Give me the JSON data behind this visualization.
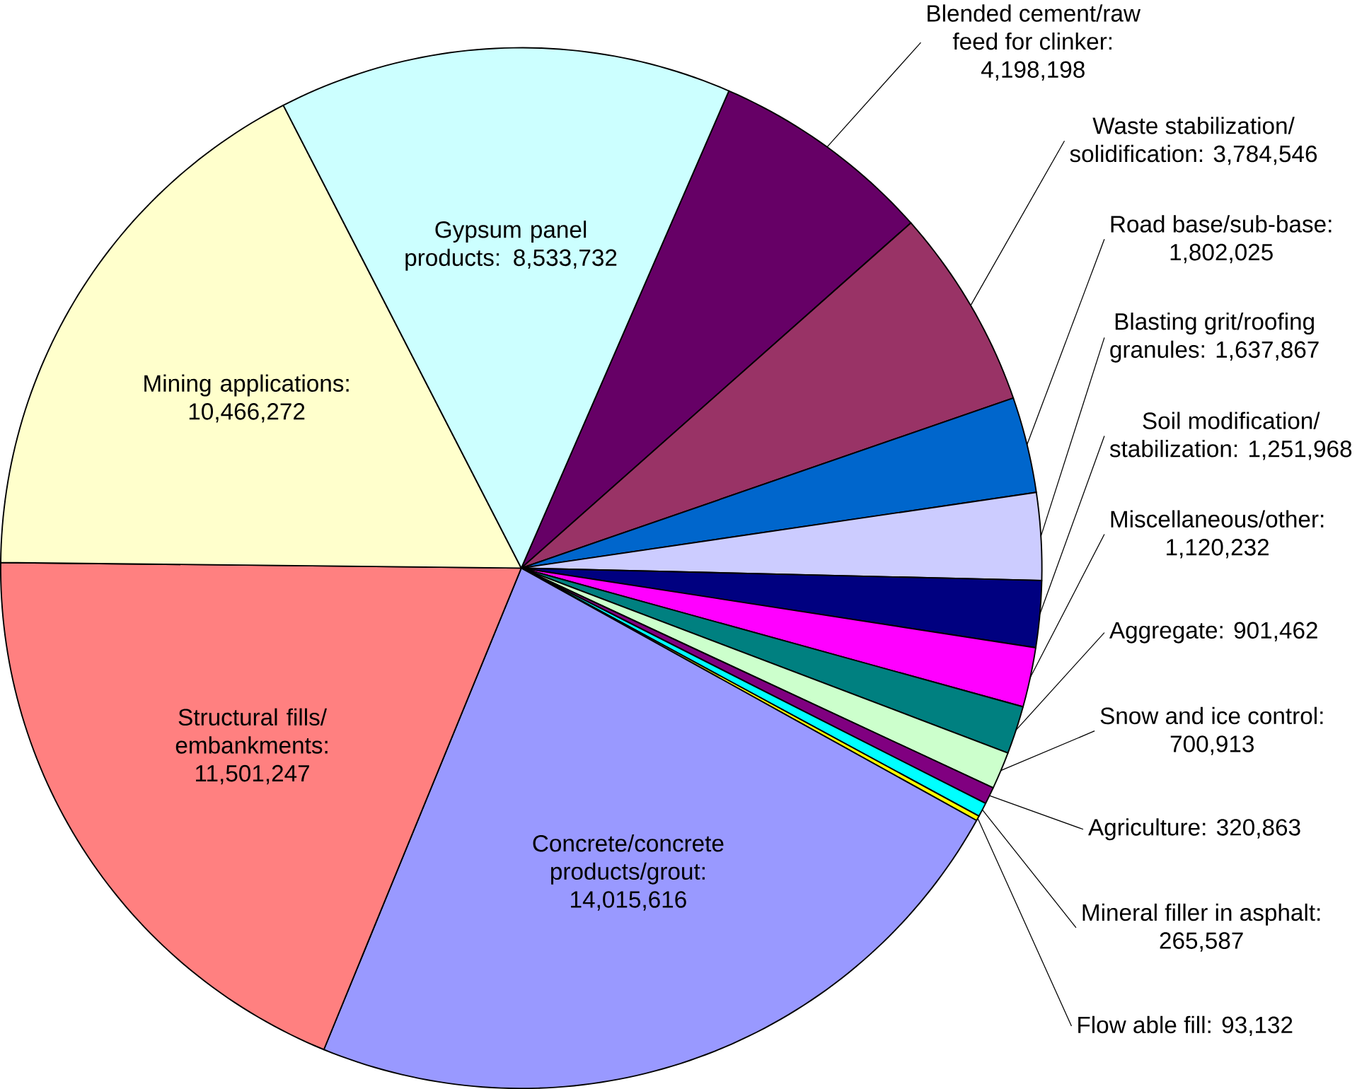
{
  "chart_data": {
    "type": "pie",
    "categories": [
      "Blended cement/raw feed for clinker: 4,198,198",
      "Waste stabilization/ solidification: 3,784,546",
      "Road base/sub-base: 1,802,025",
      "Blasting grit/roofing granules: 1,637,867",
      "Soil modification/ stabilization: 1,251,968",
      "Miscellaneous/other: 1,120,232",
      "Aggregate: 901,462",
      "Snow and ice control: 700,913",
      "Agriculture: 320,863",
      "Mineral filler in asphalt: 265,587",
      "Flow able fill: 93,132",
      "Concrete/concrete products/grout: 14,015,616",
      "Structural fills/ embankments: 11,501,247",
      "Mining applications: 10,466,272",
      "Gypsum panel products: 8,533,732"
    ],
    "values": [
      4198198,
      3784546,
      1802025,
      1637867,
      1251968,
      1120232,
      901462,
      700913,
      320863,
      265587,
      93132,
      14015616,
      11501247,
      10466272,
      8533732
    ],
    "colors": [
      "#660066",
      "#993366",
      "#0066cc",
      "#ccccff",
      "#000080",
      "#ff00ff",
      "#008080",
      "#ccffcc",
      "#800080",
      "#00ffff",
      "#ffff00",
      "#9999ff",
      "#ff8080",
      "#ffffcc",
      "#ccffff"
    ]
  }
}
